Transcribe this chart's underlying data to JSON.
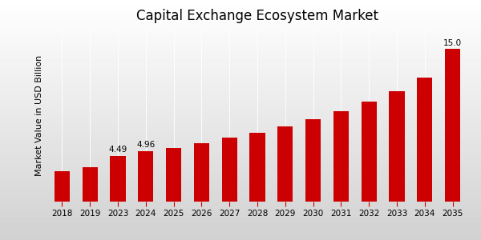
{
  "title": "Capital Exchange Ecosystem Market",
  "ylabel": "Market Value in USD Billion",
  "categories": [
    "2018",
    "2019",
    "2023",
    "2024",
    "2025",
    "2026",
    "2027",
    "2028",
    "2029",
    "2030",
    "2031",
    "2032",
    "2033",
    "2034",
    "2035"
  ],
  "values": [
    3.0,
    3.4,
    4.49,
    4.96,
    5.3,
    5.75,
    6.3,
    6.8,
    7.4,
    8.1,
    8.9,
    9.8,
    10.9,
    12.2,
    15.0
  ],
  "bar_color": "#cc0000",
  "labeled_indices": [
    2,
    3,
    14
  ],
  "labels": [
    "4.49",
    "4.96",
    "15.0"
  ],
  "background_color_top": "#e8e8e8",
  "background_color_bottom": "#d0d0d0",
  "title_fontsize": 12,
  "axis_fontsize": 8,
  "tick_fontsize": 7.5,
  "ylim": [
    0,
    17
  ],
  "bottom_bar_color": "#cc0000",
  "bottom_bar_height": 0.045
}
